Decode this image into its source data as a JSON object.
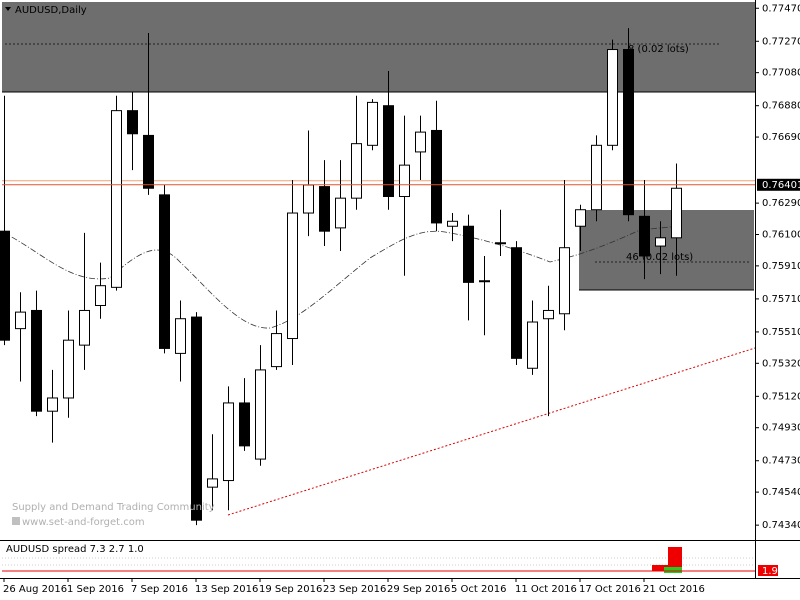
{
  "chart_data": {
    "type": "candlestick",
    "title": "AUDUSD,Daily",
    "categories": [
      "26 Aug 2016",
      null,
      null,
      null,
      "1 Sep 2016",
      null,
      null,
      null,
      "7 Sep 2016",
      null,
      null,
      null,
      "13 Sep 2016",
      null,
      null,
      null,
      "19 Sep 2016",
      null,
      null,
      null,
      "23 Sep 2016",
      null,
      null,
      null,
      "29 Sep 2016",
      null,
      null,
      null,
      "5 Oct 2016",
      null,
      null,
      null,
      "11 Oct 2016",
      null,
      null,
      null,
      "17 Oct 2016",
      null,
      null,
      null,
      "21 Oct 2016",
      null,
      null
    ],
    "open": [
      0.7612,
      0.7553,
      0.7564,
      0.7503,
      0.7511,
      0.7543,
      0.7567,
      0.7578,
      0.7685,
      0.767,
      0.7634,
      0.7538,
      0.756,
      0.7457,
      0.7461,
      0.7508,
      0.7474,
      0.753,
      0.7547,
      0.7623,
      0.7639,
      0.7614,
      0.7632,
      0.7664,
      0.7688,
      0.7633,
      0.766,
      0.7673,
      0.7615,
      0.7615,
      0.7582,
      0.7605,
      0.7602,
      0.7529,
      0.7559,
      0.7562,
      0.7615,
      0.7625,
      0.7664,
      0.7722,
      0.7621,
      0.7603,
      0.7608
    ],
    "high": [
      0.7694,
      0.7575,
      0.7576,
      0.7528,
      0.7564,
      0.7611,
      0.7593,
      0.7694,
      0.7696,
      0.7732,
      0.764,
      0.757,
      0.7563,
      0.7489,
      0.7518,
      0.7523,
      0.7543,
      0.7564,
      0.7643,
      0.7673,
      0.7655,
      0.7655,
      0.7694,
      0.7692,
      0.7709,
      0.7682,
      0.7682,
      0.7691,
      0.7623,
      0.7622,
      0.7597,
      0.7625,
      0.7606,
      0.757,
      0.7579,
      0.7643,
      0.7628,
      0.767,
      0.7728,
      0.7735,
      0.7643,
      0.7618,
      0.7653
    ],
    "low": [
      0.7543,
      0.7521,
      0.75,
      0.7484,
      0.7499,
      0.7528,
      0.7559,
      0.7576,
      0.7649,
      0.7634,
      0.7538,
      0.7521,
      0.7434,
      0.7443,
      0.7443,
      0.7479,
      0.747,
      0.7528,
      0.7531,
      0.7609,
      0.7603,
      0.76,
      0.7625,
      0.7661,
      0.7625,
      0.7585,
      0.7643,
      0.7612,
      0.7606,
      0.7558,
      0.7549,
      0.7597,
      0.7531,
      0.7525,
      0.75,
      0.7552,
      0.76,
      0.7618,
      0.7661,
      0.7618,
      0.7583,
      0.7586,
      0.7585
    ],
    "close": [
      0.7546,
      0.7563,
      0.7503,
      0.7511,
      0.7546,
      0.7564,
      0.7579,
      0.7685,
      0.7671,
      0.7638,
      0.7541,
      0.7559,
      0.7437,
      0.7462,
      0.7508,
      0.7482,
      0.7528,
      0.755,
      0.7623,
      0.764,
      0.7612,
      0.7632,
      0.7665,
      0.769,
      0.7633,
      0.7652,
      0.7672,
      0.7617,
      0.7618,
      0.7581,
      0.7582,
      0.7605,
      0.7535,
      0.7557,
      0.7564,
      0.7602,
      0.7625,
      0.7664,
      0.7722,
      0.7622,
      0.7597,
      0.7608,
      0.7638
    ],
    "ylim": [
      0.7425,
      0.7752
    ],
    "yticks": [
      {
        "value": 0.7747,
        "label": "0.77470"
      },
      {
        "value": 0.7727,
        "label": "0.77270"
      },
      {
        "value": 0.7708,
        "label": "0.77080"
      },
      {
        "value": 0.7688,
        "label": "0.76880"
      },
      {
        "value": 0.7669,
        "label": "0.76690"
      },
      {
        "value": 0.7629,
        "label": "0.76290"
      },
      {
        "value": 0.761,
        "label": "0.76100"
      },
      {
        "value": 0.7591,
        "label": "0.75910"
      },
      {
        "value": 0.7571,
        "label": "0.75710"
      },
      {
        "value": 0.7551,
        "label": "0.75510"
      },
      {
        "value": 0.7532,
        "label": "0.75320"
      },
      {
        "value": 0.7512,
        "label": "0.75120"
      },
      {
        "value": 0.7493,
        "label": "0.74930"
      },
      {
        "value": 0.7473,
        "label": "0.74730"
      },
      {
        "value": 0.7454,
        "label": "0.74540"
      },
      {
        "value": 0.7434,
        "label": "0.74340"
      }
    ],
    "current_price": 0.76401,
    "annotations": [
      "8 (0.02 lots)",
      "46 (0.02 lots)",
      "Supply and Demand Trading Community",
      "www.set-and-forget.com"
    ],
    "indicator": {
      "title": "AUDUSD spread 7.3 2.7 1.0",
      "value": 1.9
    }
  }
}
